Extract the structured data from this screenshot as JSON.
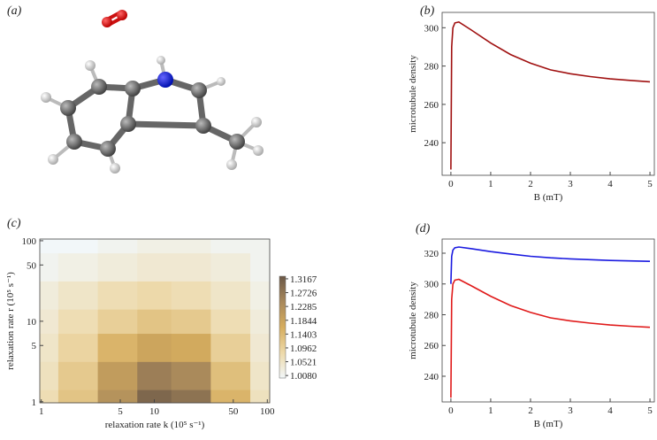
{
  "chart_data": [
    {
      "type": "molecule",
      "panel_label": "(a)"
    },
    {
      "type": "line",
      "panel_label": "(b)",
      "xlabel": "B (mT)",
      "ylabel": "microtubule density",
      "xlim": [
        -0.22,
        5.11
      ],
      "xticks": [
        0,
        1,
        2,
        3,
        4,
        5
      ],
      "ylim": [
        223,
        308
      ],
      "yticks": [
        240,
        260,
        280,
        300
      ],
      "x": [
        0,
        0.02,
        0.05,
        0.1,
        0.2,
        0.5,
        1,
        1.5,
        2,
        2.5,
        3,
        3.5,
        4,
        4.5,
        5
      ],
      "series": [
        {
          "color": "#a01010",
          "values": [
            226,
            290,
            300,
            302.5,
            303,
            299,
            292,
            286,
            281.5,
            278,
            276,
            274.5,
            273.3,
            272.5,
            271.8
          ]
        }
      ]
    },
    {
      "type": "heatmap",
      "panel_label": "(c)",
      "xlabel": "relaxation rate k (10⁵ s⁻¹)",
      "ylabel": "relaxation rate r (10⁵ s⁻¹)",
      "log_scale": true,
      "xlim": [
        0.97,
        105
      ],
      "ylim": [
        0.97,
        105
      ],
      "xticks": [
        1,
        5,
        10,
        50,
        100
      ],
      "yticks": [
        1,
        5,
        10,
        50,
        100
      ],
      "x": [
        1,
        2,
        5,
        10,
        20,
        50,
        100
      ],
      "y": [
        1,
        2,
        5,
        10,
        20,
        50,
        100
      ],
      "z": [
        [
          1.07,
          1.12,
          1.22,
          1.3,
          1.28,
          1.15,
          1.06
        ],
        [
          1.06,
          1.11,
          1.2,
          1.26,
          1.24,
          1.13,
          1.05
        ],
        [
          1.05,
          1.09,
          1.15,
          1.18,
          1.17,
          1.1,
          1.04
        ],
        [
          1.04,
          1.07,
          1.1,
          1.12,
          1.11,
          1.07,
          1.03
        ],
        [
          1.03,
          1.05,
          1.07,
          1.08,
          1.07,
          1.05,
          1.02
        ],
        [
          1.01,
          1.02,
          1.03,
          1.04,
          1.04,
          1.03,
          1.01
        ],
        [
          1.0,
          1.0,
          1.01,
          1.02,
          1.02,
          1.01,
          1.01
        ]
      ],
      "zlim": [
        1.0,
        1.325
      ],
      "zticks": [
        1.3167,
        1.2726,
        1.2285,
        1.1844,
        1.1403,
        1.0962,
        1.0521,
        {
          "value": 1.008,
          "label": "1.0080"
        }
      ]
    },
    {
      "type": "line",
      "panel_label": "(d)",
      "xlabel": "B (mT)",
      "ylabel": "microtubule density",
      "xlim": [
        -0.22,
        5.11
      ],
      "xticks": [
        0,
        1,
        2,
        3,
        4,
        5
      ],
      "ylim": [
        223.3,
        329.2
      ],
      "yticks": [
        240,
        260,
        280,
        300,
        320
      ],
      "x": [
        0,
        0.02,
        0.05,
        0.1,
        0.2,
        0.5,
        1,
        1.5,
        2,
        2.5,
        3,
        3.5,
        4,
        4.5,
        5
      ],
      "series": [
        {
          "color": "#1a1ae0",
          "values": [
            300,
            318,
            322,
            323.5,
            324,
            323,
            321,
            319.5,
            318,
            317,
            316.3,
            315.8,
            315.3,
            315,
            314.7
          ]
        },
        {
          "color": "#e01a1a",
          "values": [
            226,
            290,
            300,
            302.5,
            303,
            299,
            292,
            286,
            281.5,
            278,
            276,
            274.5,
            273.3,
            272.5,
            271.8
          ]
        }
      ]
    }
  ]
}
